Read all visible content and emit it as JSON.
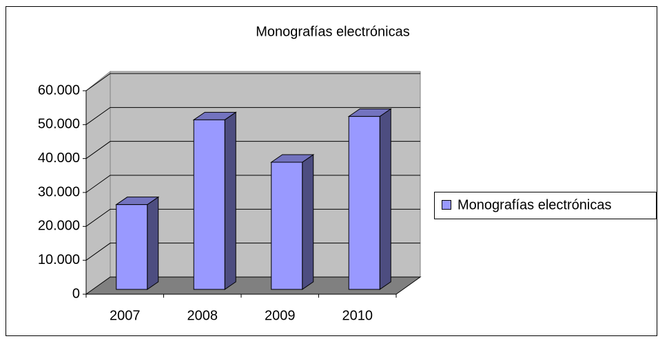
{
  "chart_data": {
    "type": "bar3d",
    "title": "Monografías electrónicas",
    "categories": [
      "2007",
      "2008",
      "2009",
      "2010"
    ],
    "series": [
      {
        "name": "Monografías electrónicas",
        "color": "#9999ff",
        "values": [
          25000,
          50000,
          37500,
          51000
        ]
      }
    ],
    "ylim": [
      0,
      60000
    ],
    "yticks": [
      0,
      {
        "value": 10000,
        "label": "10.000"
      },
      {
        "value": 20000,
        "label": "20.000"
      },
      {
        "value": 30000,
        "label": "30.000"
      },
      {
        "value": 40000,
        "label": "40.000"
      },
      {
        "value": 50000,
        "label": "50.000"
      },
      {
        "value": 60000,
        "label": "60.000"
      }
    ],
    "grid": true,
    "legend": "right"
  }
}
